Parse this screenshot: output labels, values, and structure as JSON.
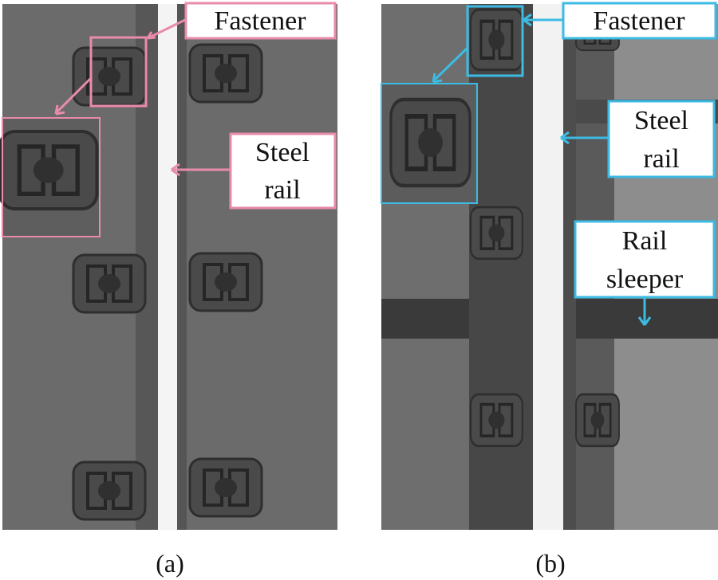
{
  "panels": [
    {
      "caption": "(a)",
      "accent_color": "#e98bab",
      "labels": {
        "fastener": "Fastener",
        "steel_rail_line1": "Steel",
        "steel_rail_line2": "rail"
      }
    },
    {
      "caption": "(b)",
      "accent_color": "#3cbbe3",
      "labels": {
        "fastener": "Fastener",
        "steel_rail_line1": "Steel",
        "steel_rail_line2": "rail",
        "rail_sleeper_line1": "Rail",
        "rail_sleeper_line2": "sleeper"
      }
    }
  ]
}
